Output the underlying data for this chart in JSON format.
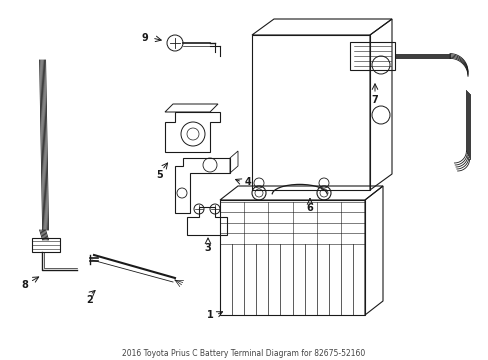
{
  "title": "2016 Toyota Prius C Battery Terminal Diagram for 82675-52160",
  "bg_color": "#ffffff",
  "lc": "#1a1a1a",
  "figsize": [
    4.89,
    3.6
  ],
  "dpi": 100
}
